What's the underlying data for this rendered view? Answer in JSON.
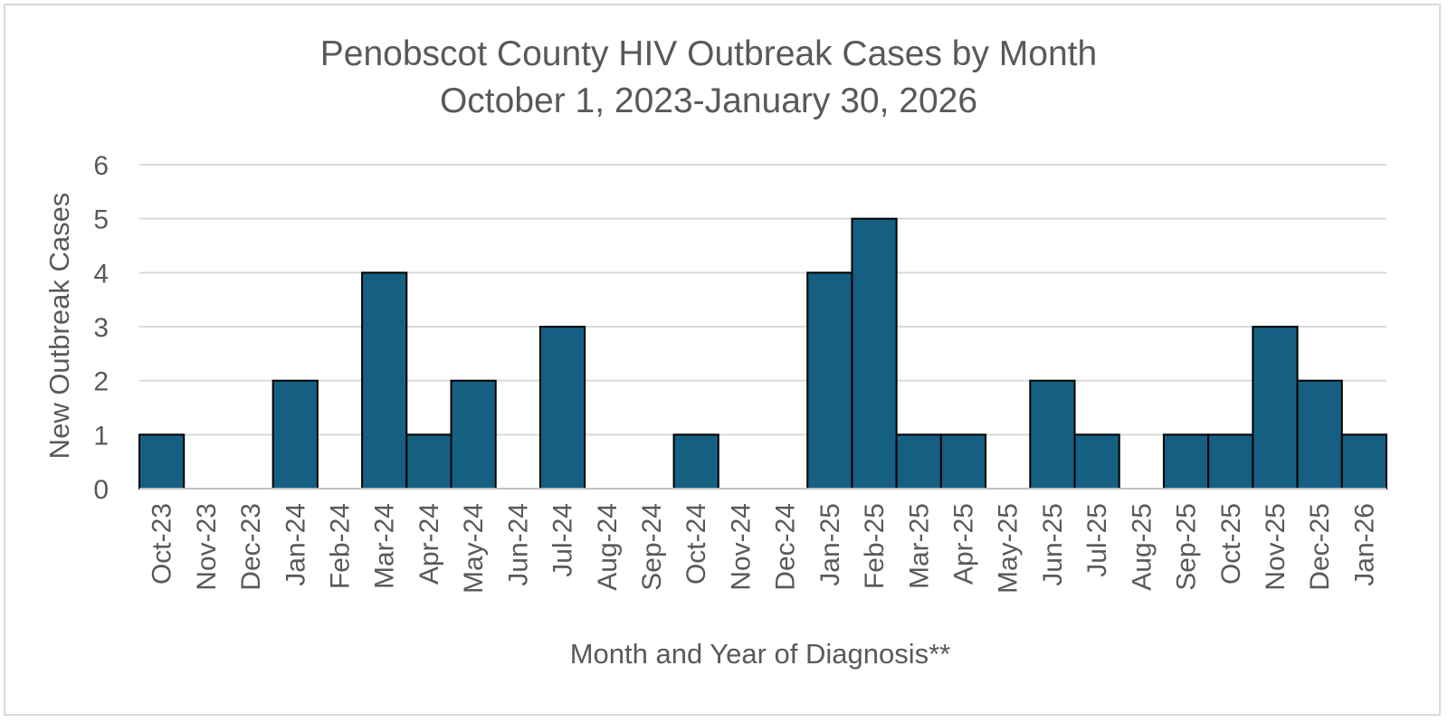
{
  "chart_data": {
    "type": "bar",
    "title": "Penobscot County HIV Outbreak Cases by Month",
    "subtitle": "October 1, 2023-January 30, 2026",
    "xlabel": "Month and Year of Diagnosis**",
    "ylabel": "New Outbreak Cases",
    "ylim": [
      0,
      6
    ],
    "yticks": [
      0,
      1,
      2,
      3,
      4,
      5,
      6
    ],
    "grid": true,
    "legend": "none",
    "bar_color": "#156082",
    "categories": [
      "Oct-23",
      "Nov-23",
      "Dec-23",
      "Jan-24",
      "Feb-24",
      "Mar-24",
      "Apr-24",
      "May-24",
      "Jun-24",
      "Jul-24",
      "Aug-24",
      "Sep-24",
      "Oct-24",
      "Nov-24",
      "Dec-24",
      "Jan-25",
      "Feb-25",
      "Mar-25",
      "Apr-25",
      "May-25",
      "Jun-25",
      "Jul-25",
      "Aug-25",
      "Sep-25",
      "Oct-25",
      "Nov-25",
      "Dec-25",
      "Jan-26"
    ],
    "values": [
      1,
      0,
      0,
      2,
      0,
      4,
      1,
      2,
      0,
      3,
      0,
      0,
      1,
      0,
      0,
      4,
      5,
      1,
      1,
      0,
      2,
      1,
      0,
      1,
      1,
      3,
      2,
      1
    ]
  }
}
